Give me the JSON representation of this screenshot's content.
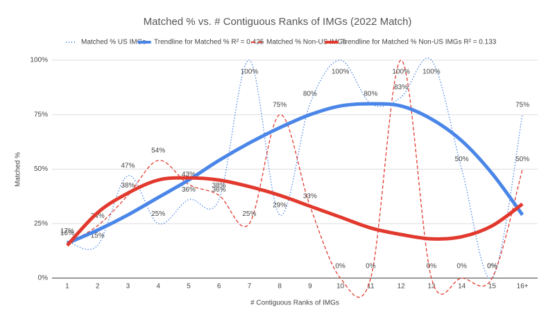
{
  "chart_data": {
    "type": "line",
    "title": "Matched % vs. # Contiguous Ranks of IMGs (2022 Match)",
    "x_label": "# Contiguous Ranks of IMGs",
    "y_label": "Matched %",
    "categories": [
      "1",
      "2",
      "3",
      "4",
      "5",
      "6",
      "7",
      "8",
      "9",
      "10",
      "11",
      "12",
      "13",
      "14",
      "15",
      "16+"
    ],
    "ylim": [
      0,
      100
    ],
    "yticks": [
      {
        "value": 0,
        "label": "0%"
      },
      {
        "value": 25,
        "label": "25%"
      },
      {
        "value": 50,
        "label": "50%"
      },
      {
        "value": 75,
        "label": "75%"
      },
      {
        "value": 100,
        "label": "100%"
      }
    ],
    "grid": true,
    "legend": "top",
    "series": [
      {
        "name": "Matched % US IMGs",
        "color": "#4a86e8",
        "style": "dotted",
        "values": [
          17,
          15,
          47,
          25,
          36,
          36,
          100,
          29,
          80,
          100,
          80,
          83,
          100,
          50,
          0,
          75
        ],
        "value_labels": [
          "17%",
          "15%",
          "47%",
          "25%",
          "36%",
          "36%",
          "100%",
          "29%",
          "80%",
          "100%",
          "80%",
          "83%",
          "100%",
          "50%",
          "0%",
          "75%"
        ]
      },
      {
        "name": "Trendline for Matched % R² = 0.425",
        "color": "#4a86e8",
        "style": "trend",
        "values": [
          16,
          22,
          29,
          37,
          45,
          54,
          62,
          69,
          75,
          79,
          80,
          79,
          73,
          63,
          48,
          29
        ]
      },
      {
        "name": "Matched % Non-US IMGs",
        "color": "#e2392e",
        "style": "dashed",
        "values": [
          16,
          24,
          38,
          54,
          43,
          38,
          25,
          75,
          33,
          0,
          0,
          100,
          0,
          0,
          0,
          50
        ],
        "value_labels": [
          "16%",
          "24%",
          "38%",
          "54%",
          "43%",
          "38%",
          "25%",
          "75%",
          "33%",
          "0%",
          "0%",
          "100%",
          "0%",
          "0%",
          "0%",
          "50%"
        ]
      },
      {
        "name": "Trendline for Matched % Non-US IMGs R² = 0.133",
        "color": "#e2392e",
        "style": "trend",
        "values": [
          15,
          30,
          39,
          45,
          46,
          45,
          42,
          38,
          33,
          28,
          23,
          20,
          18,
          19,
          24,
          34
        ]
      }
    ]
  }
}
